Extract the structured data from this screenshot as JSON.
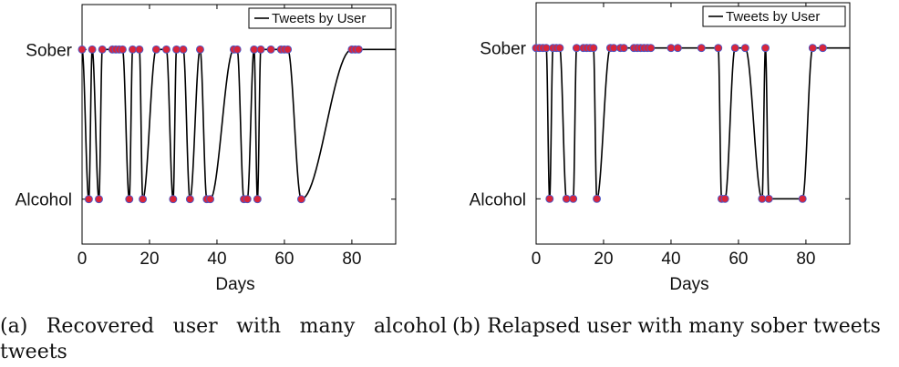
{
  "chart_data": [
    {
      "type": "line",
      "title": "",
      "xlabel": "Days",
      "ylabel": "",
      "xlim": [
        0,
        93
      ],
      "ylim": [
        -0.3,
        1.3
      ],
      "xticks": [
        0,
        20,
        40,
        60,
        80
      ],
      "yticks": [
        0,
        1
      ],
      "ytick_labels": [
        "Alcohol",
        "Sober"
      ],
      "grid": false,
      "legend": {
        "position": "top-right",
        "entries": [
          "Tweets by User"
        ]
      },
      "series": [
        {
          "name": "Tweets by User",
          "x": [
            0,
            2,
            3,
            5,
            6,
            9,
            10,
            11,
            12,
            14,
            15,
            17,
            18,
            22,
            25,
            27,
            28,
            30,
            32,
            35,
            37,
            38,
            45,
            46,
            48,
            49,
            51,
            52,
            53,
            56,
            59,
            60,
            61,
            65,
            80,
            81,
            82
          ],
          "y": [
            1,
            0,
            1,
            0,
            1,
            1,
            1,
            1,
            1,
            0,
            1,
            1,
            0,
            1,
            1,
            0,
            1,
            1,
            0,
            1,
            0,
            0,
            1,
            1,
            0,
            0,
            1,
            0,
            1,
            1,
            1,
            1,
            1,
            0,
            1,
            1,
            1
          ]
        }
      ],
      "caption": "(a)  Recovered  user  with  many  alcohol tweets"
    },
    {
      "type": "line",
      "title": "",
      "xlabel": "Days",
      "ylabel": "",
      "xlim": [
        0,
        93
      ],
      "ylim": [
        -0.3,
        1.3
      ],
      "xticks": [
        0,
        20,
        40,
        60,
        80
      ],
      "yticks": [
        0,
        1
      ],
      "ytick_labels": [
        "Alcohol",
        "Sober"
      ],
      "grid": false,
      "legend": {
        "position": "top-right",
        "entries": [
          "Tweets by User"
        ]
      },
      "series": [
        {
          "name": "Tweets by User",
          "x": [
            0,
            1,
            2,
            3,
            4,
            5,
            6,
            7,
            9,
            11,
            12,
            14,
            15,
            16,
            17,
            18,
            22,
            23,
            25,
            26,
            29,
            30,
            31,
            32,
            33,
            34,
            40,
            42,
            49,
            54,
            55,
            56,
            59,
            62,
            67,
            68,
            69,
            79,
            82,
            85
          ],
          "y": [
            1,
            1,
            1,
            1,
            0,
            1,
            1,
            1,
            0,
            0,
            1,
            1,
            1,
            1,
            1,
            0,
            1,
            1,
            1,
            1,
            1,
            1,
            1,
            1,
            1,
            1,
            1,
            1,
            1,
            1,
            0,
            0,
            1,
            1,
            0,
            1,
            0,
            0,
            1,
            1
          ]
        }
      ],
      "caption": "(b) Relapsed user with many sober tweets"
    }
  ],
  "colors": {
    "line": "#000000",
    "marker_fill": "#d9253a",
    "marker_edge": "#4a57c8"
  }
}
